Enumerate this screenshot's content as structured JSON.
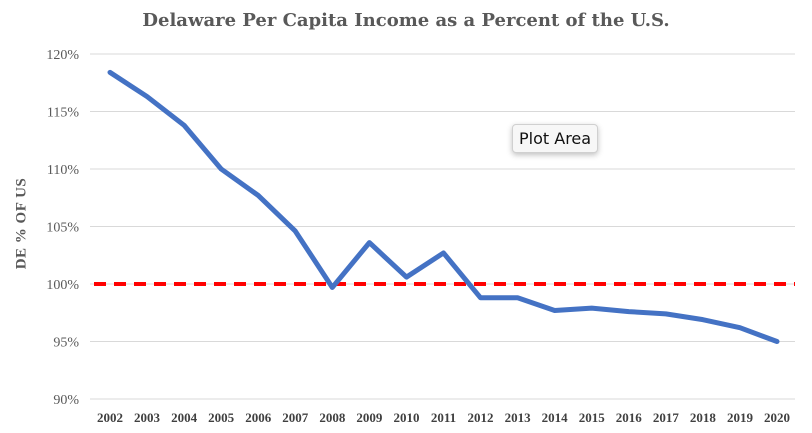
{
  "chart_data": {
    "type": "line",
    "title": "Delaware Per Capita Income as a Percent of the U.S.",
    "xlabel": "",
    "ylabel": "DE % OF US",
    "ylim": [
      90,
      120
    ],
    "yticks": [
      "90%",
      "95%",
      "100%",
      "105%",
      "110%",
      "115%",
      "120%"
    ],
    "ytick_values": [
      90,
      95,
      100,
      105,
      110,
      115,
      120
    ],
    "categories": [
      "2002",
      "2003",
      "2004",
      "2005",
      "2006",
      "2007",
      "2008",
      "2009",
      "2010",
      "2011",
      "2012",
      "2013",
      "2014",
      "2015",
      "2016",
      "2017",
      "2018",
      "2019",
      "2020"
    ],
    "series": [
      {
        "color": "#4472C4",
        "values": [
          118.4,
          116.3,
          113.8,
          110.0,
          107.7,
          104.6,
          99.7,
          103.6,
          100.6,
          102.7,
          98.8,
          98.8,
          97.7,
          97.9,
          97.6,
          97.4,
          96.9,
          96.2,
          95.0
        ]
      }
    ],
    "reference_line": {
      "value": 100,
      "color": "#FF0000",
      "style": "dashed"
    },
    "grid": true,
    "legend": "none"
  },
  "tooltip": {
    "text": "Plot Area"
  }
}
